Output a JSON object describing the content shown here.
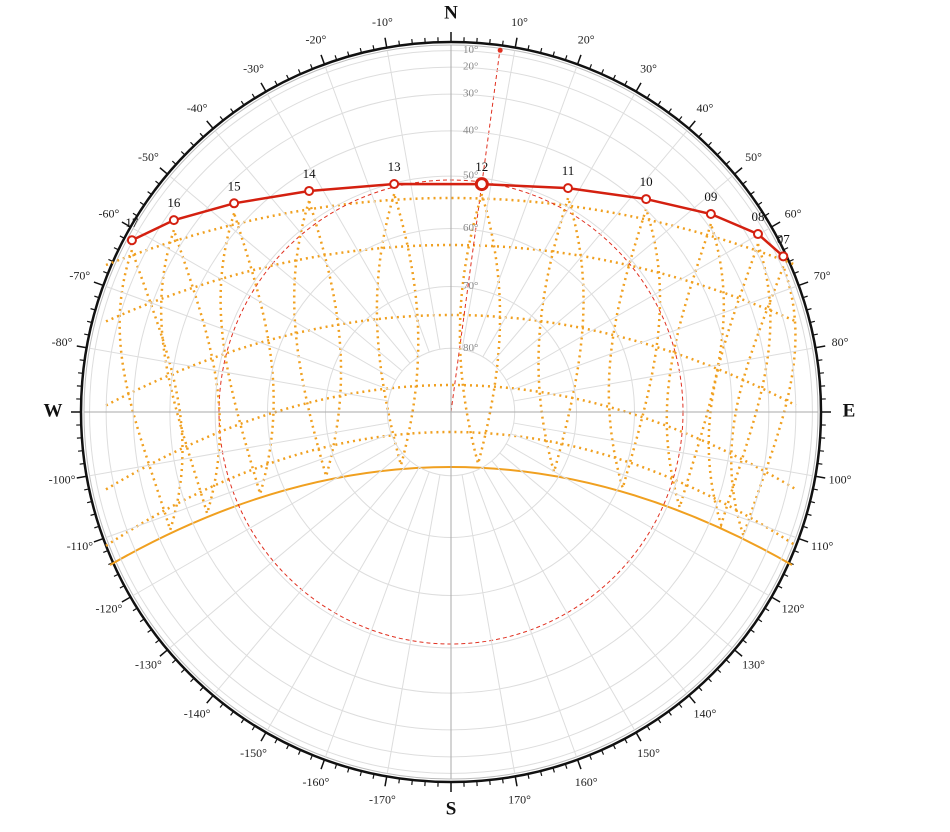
{
  "chart_data": {
    "type": "sunpath",
    "rlim": [
      0,
      90
    ],
    "directions": [
      {
        "value": 0,
        "label": "N"
      },
      {
        "value": 90,
        "label": "E"
      },
      {
        "value": 180,
        "label": "S"
      },
      {
        "value": -90,
        "label": "W"
      }
    ],
    "azimuth_ticks": [
      {
        "value": 10,
        "label": "10°"
      },
      {
        "value": 20,
        "label": "20°"
      },
      {
        "value": 30,
        "label": "30°"
      },
      {
        "value": 40,
        "label": "40°"
      },
      {
        "value": 50,
        "label": "50°"
      },
      {
        "value": 60,
        "label": "60°"
      },
      {
        "value": 70,
        "label": "70°"
      },
      {
        "value": 80,
        "label": "80°"
      },
      {
        "value": 100,
        "label": "100°"
      },
      {
        "value": 110,
        "label": "110°"
      },
      {
        "value": 120,
        "label": "120°"
      },
      {
        "value": 130,
        "label": "130°"
      },
      {
        "value": 140,
        "label": "140°"
      },
      {
        "value": 150,
        "label": "150°"
      },
      {
        "value": 160,
        "label": "160°"
      },
      {
        "value": 170,
        "label": "170°"
      },
      {
        "value": -10,
        "label": "-10°"
      },
      {
        "value": -20,
        "label": "-20°"
      },
      {
        "value": -30,
        "label": "-30°"
      },
      {
        "value": -40,
        "label": "-40°"
      },
      {
        "value": -50,
        "label": "-50°"
      },
      {
        "value": -60,
        "label": "-60°"
      },
      {
        "value": -70,
        "label": "-70°"
      },
      {
        "value": -80,
        "label": "-80°"
      },
      {
        "value": -100,
        "label": "-100°"
      },
      {
        "value": -110,
        "label": "-110°"
      },
      {
        "value": -120,
        "label": "-120°"
      },
      {
        "value": -130,
        "label": "-130°"
      },
      {
        "value": -140,
        "label": "-140°"
      },
      {
        "value": -150,
        "label": "-150°"
      },
      {
        "value": -160,
        "label": "-160°"
      },
      {
        "value": -170,
        "label": "-170°"
      }
    ],
    "altitude_ticks": [
      {
        "value": 10,
        "label": "10°"
      },
      {
        "value": 20,
        "label": "20°"
      },
      {
        "value": 30,
        "label": "30°"
      },
      {
        "value": 40,
        "label": "40°"
      },
      {
        "value": 50,
        "label": "50°"
      },
      {
        "value": 60,
        "label": "60°"
      },
      {
        "value": 70,
        "label": "70°"
      },
      {
        "value": 80,
        "label": "80°"
      }
    ],
    "series": [
      {
        "color": "#d42010",
        "labels": [
          "07",
          "08",
          "09",
          "10",
          "11",
          "12",
          "13",
          "14",
          "15",
          "16",
          "17"
        ],
        "azimuth": [
          64.9,
          59.9,
          52.7,
          42.5,
          27.6,
          7.7,
          -14,
          -32.7,
          -46.1,
          -55.3,
          -61.7
        ],
        "altitude": [
          1,
          14.8,
          27.1,
          38.1,
          46.5,
          51.2,
          50.2,
          44.3,
          34.9,
          23.3,
          9.1
        ]
      }
    ]
  }
}
